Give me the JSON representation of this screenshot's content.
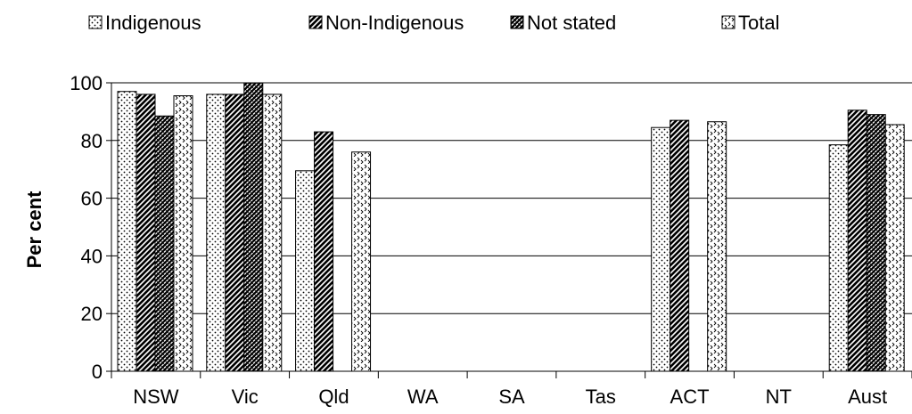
{
  "chart_data": {
    "type": "bar",
    "categories": [
      "NSW",
      "Vic",
      "Qld",
      "WA",
      "SA",
      "Tas",
      "ACT",
      "NT",
      "Aust"
    ],
    "series": [
      {
        "name": "Indigenous",
        "values": [
          97,
          96,
          69.5,
          null,
          null,
          null,
          84.5,
          null,
          78.5
        ]
      },
      {
        "name": "Non-Indigenous",
        "values": [
          96,
          96,
          83,
          null,
          null,
          null,
          87,
          null,
          90.5
        ]
      },
      {
        "name": "Not stated",
        "values": [
          88.5,
          100,
          null,
          null,
          null,
          null,
          null,
          null,
          89
        ]
      },
      {
        "name": "Total",
        "values": [
          95.5,
          96,
          76,
          null,
          null,
          null,
          86.5,
          null,
          85.5
        ]
      }
    ],
    "ylabel": "Per cent",
    "xlabel": "",
    "ylim": [
      0,
      100
    ],
    "yticks": [
      0,
      20,
      40,
      60,
      80,
      100
    ],
    "grid": true,
    "legend": "top",
    "pattern_names": [
      "dots",
      "diagonal-stripes",
      "cross-hatch",
      "zigzag"
    ]
  }
}
